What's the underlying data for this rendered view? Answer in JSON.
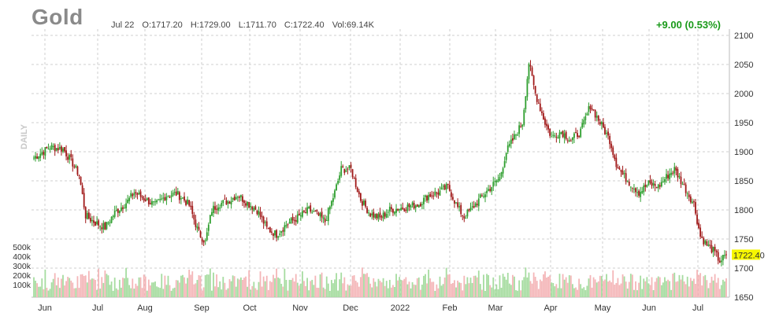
{
  "header": {
    "symbol": "Gold",
    "date": "Jul 22",
    "open": "O:1717.20",
    "high": "H:1729.00",
    "low": "L:1711.70",
    "close": "C:1722.40",
    "volume": "Vol:69.14K",
    "change": "+9.00 (0.53%)",
    "period_label": "DAILY",
    "last_price_label": "1722.40"
  },
  "colors": {
    "up": "#2e9e2e",
    "down": "#a01818",
    "up_volume": "#a6dca0",
    "down_volume": "#f4b6b8",
    "grid": "#cfcfcf",
    "last_price_bg": "#f6f600"
  },
  "chart_data": {
    "type": "candlestick",
    "ylim": [
      1650,
      2100
    ],
    "y_ticks": [
      2100,
      2050,
      2000,
      1950,
      1900,
      1850,
      1800,
      1750,
      1700,
      1650
    ],
    "x_tick_labels": [
      "Jun",
      "Jul",
      "Aug",
      "Sep",
      "Oct",
      "Nov",
      "Dec",
      "2022",
      "Feb",
      "Mar",
      "Apr",
      "May",
      "Jun",
      "Jul"
    ],
    "volume_ticks": [
      "500k",
      "400k",
      "300k",
      "200k",
      "100k"
    ],
    "last_close": 1722.4,
    "price_path_anchors": [
      [
        0,
        1890
      ],
      [
        10,
        1908
      ],
      [
        18,
        1905
      ],
      [
        24,
        1880
      ],
      [
        28,
        1860
      ],
      [
        32,
        1790
      ],
      [
        38,
        1778
      ],
      [
        44,
        1770
      ],
      [
        50,
        1795
      ],
      [
        58,
        1815
      ],
      [
        62,
        1830
      ],
      [
        68,
        1820
      ],
      [
        75,
        1808
      ],
      [
        82,
        1825
      ],
      [
        88,
        1828
      ],
      [
        92,
        1820
      ],
      [
        96,
        1808
      ],
      [
        102,
        1760
      ],
      [
        106,
        1745
      ],
      [
        110,
        1800
      ],
      [
        114,
        1810
      ],
      [
        120,
        1815
      ],
      [
        126,
        1826
      ],
      [
        132,
        1812
      ],
      [
        138,
        1800
      ],
      [
        144,
        1768
      ],
      [
        150,
        1758
      ],
      [
        156,
        1775
      ],
      [
        162,
        1785
      ],
      [
        170,
        1800
      ],
      [
        176,
        1790
      ],
      [
        180,
        1780
      ],
      [
        186,
        1830
      ],
      [
        190,
        1870
      ],
      [
        196,
        1870
      ],
      [
        202,
        1818
      ],
      [
        208,
        1793
      ],
      [
        214,
        1786
      ],
      [
        220,
        1800
      ],
      [
        226,
        1803
      ],
      [
        232,
        1806
      ],
      [
        238,
        1810
      ],
      [
        244,
        1825
      ],
      [
        250,
        1830
      ],
      [
        256,
        1840
      ],
      [
        262,
        1804
      ],
      [
        266,
        1788
      ],
      [
        270,
        1800
      ],
      [
        276,
        1820
      ],
      [
        282,
        1838
      ],
      [
        288,
        1855
      ],
      [
        292,
        1900
      ],
      [
        296,
        1920
      ],
      [
        302,
        1950
      ],
      [
        306,
        2053
      ],
      [
        310,
        2000
      ],
      [
        316,
        1950
      ],
      [
        320,
        1925
      ],
      [
        326,
        1935
      ],
      [
        332,
        1920
      ],
      [
        338,
        1935
      ],
      [
        344,
        1980
      ],
      [
        350,
        1950
      ],
      [
        356,
        1920
      ],
      [
        360,
        1880
      ],
      [
        364,
        1860
      ],
      [
        368,
        1848
      ],
      [
        374,
        1830
      ],
      [
        380,
        1845
      ],
      [
        386,
        1840
      ],
      [
        392,
        1860
      ],
      [
        396,
        1870
      ],
      [
        400,
        1850
      ],
      [
        404,
        1830
      ],
      [
        408,
        1810
      ],
      [
        412,
        1755
      ],
      [
        416,
        1740
      ],
      [
        420,
        1730
      ],
      [
        424,
        1712
      ],
      [
        428,
        1722.4
      ]
    ]
  }
}
